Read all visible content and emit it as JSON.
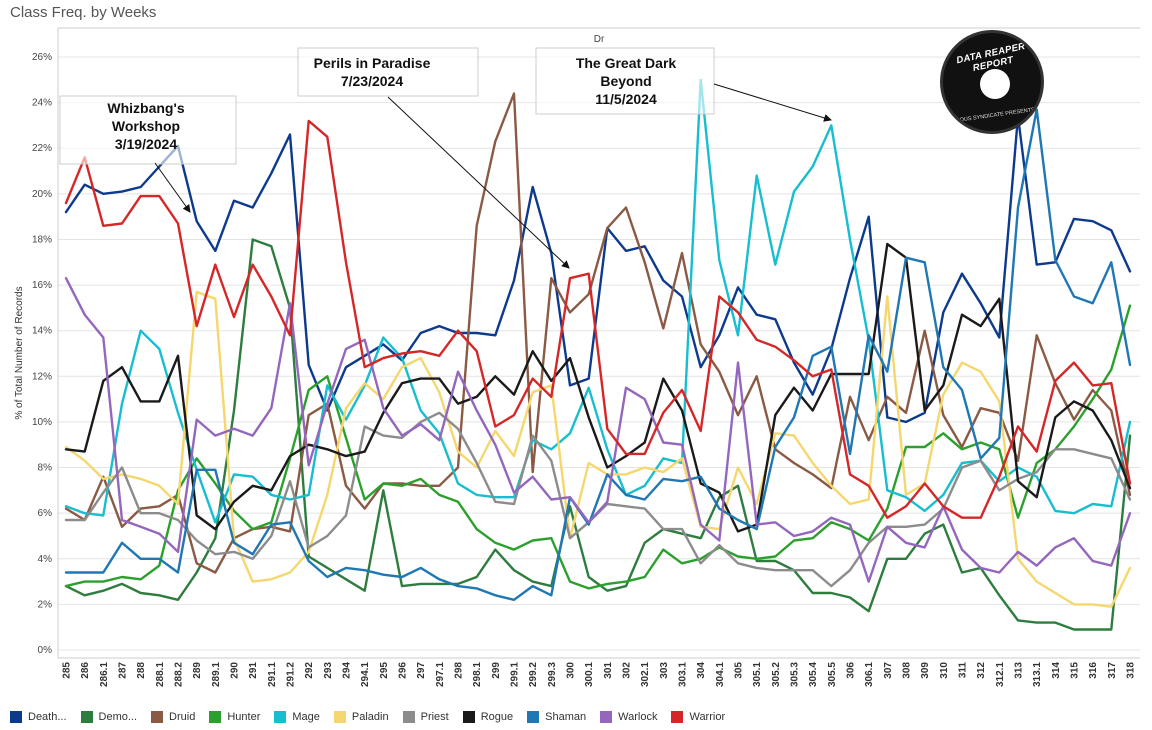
{
  "header": {
    "title": "Class Freq. by Weeks"
  },
  "logo": {
    "top_text": "DATA REAPER REPORT",
    "bottom_text": "VICIOUS SYNDICATE PRESENTS"
  },
  "legend": [
    {
      "label": "Death...",
      "color": "#0d3a8c"
    },
    {
      "label": "Demo...",
      "color": "#2e7d3e"
    },
    {
      "label": "Druid",
      "color": "#8a5a44"
    },
    {
      "label": "Hunter",
      "color": "#2ca02c"
    },
    {
      "label": "Mage",
      "color": "#17becf"
    },
    {
      "label": "Paladin",
      "color": "#f5d76e"
    },
    {
      "label": "Priest",
      "color": "#8c8c8c"
    },
    {
      "label": "Rogue",
      "color": "#1a1a1a"
    },
    {
      "label": "Shaman",
      "color": "#1f77b4"
    },
    {
      "label": "Warlock",
      "color": "#9467bd"
    },
    {
      "label": "Warrior",
      "color": "#d62728"
    }
  ],
  "chart_data": {
    "type": "line",
    "title": "Class Freq. by Weeks",
    "top_axis_label": "Dr",
    "ylabel": "% of Total Number of Records",
    "ylim": [
      0,
      26
    ],
    "yticks": [
      "0%",
      "2%",
      "4%",
      "6%",
      "8%",
      "10%",
      "12%",
      "14%",
      "16%",
      "18%",
      "20%",
      "22%",
      "24%",
      "26%"
    ],
    "grid": "horizontal",
    "legend_position": "bottom",
    "categories": [
      "285",
      "286",
      "286.1",
      "287",
      "288",
      "288.1",
      "288.2",
      "289",
      "289.1",
      "290",
      "291",
      "291.1",
      "291.2",
      "292",
      "293",
      "294",
      "294.1",
      "295",
      "296",
      "297",
      "297.1",
      "298",
      "298.1",
      "299",
      "299.1",
      "299.2",
      "299.3",
      "300",
      "300.1",
      "301",
      "302",
      "302.1",
      "303",
      "303.1",
      "304",
      "304.1",
      "305",
      "305.1",
      "305.2",
      "305.3",
      "305.4",
      "305.5",
      "306",
      "306.1",
      "307",
      "308",
      "309",
      "310",
      "311",
      "312",
      "312.1",
      "313",
      "313.1",
      "314",
      "315",
      "316",
      "317",
      "318"
    ],
    "annotations": [
      {
        "lines": [
          "Whizbang's",
          "Workshop",
          "3/19/2024"
        ]
      },
      {
        "lines": [
          "Perils in Paradise",
          "7/23/2024"
        ]
      },
      {
        "lines": [
          "The Great Dark",
          "Beyond",
          "11/5/2024"
        ]
      }
    ],
    "series": [
      {
        "name": "Death...",
        "values": [
          19.2,
          20.4,
          20.0,
          20.1,
          20.3,
          21.2,
          22.1,
          18.8,
          17.5,
          19.7,
          19.4,
          20.9,
          22.6,
          12.5,
          10.5,
          12.4,
          12.9,
          13.4,
          12.7,
          13.9,
          14.2,
          13.9,
          13.9,
          13.8,
          16.2,
          20.3,
          17.4,
          11.6,
          11.9,
          18.5,
          17.5,
          17.7,
          16.2,
          15.5,
          12.4,
          13.8,
          15.9,
          14.7,
          14.5,
          12.6,
          11.2,
          13.2,
          16.3,
          19.0,
          10.2,
          10.0,
          10.4,
          14.8,
          16.5,
          15.2,
          13.7,
          23.4,
          16.9,
          17.0,
          18.9,
          18.8,
          18.4,
          16.6
        ]
      },
      {
        "name": "Demo...",
        "values": [
          2.8,
          2.4,
          2.6,
          2.9,
          2.5,
          2.4,
          2.2,
          3.4,
          4.9,
          10.5,
          18.0,
          17.7,
          15.0,
          4.1,
          3.6,
          3.1,
          2.6,
          7.0,
          2.8,
          2.9,
          2.9,
          2.9,
          3.2,
          4.4,
          3.5,
          3.0,
          2.8,
          6.3,
          3.2,
          2.6,
          2.8,
          4.7,
          5.3,
          5.1,
          4.9,
          6.7,
          7.2,
          3.9,
          3.9,
          3.5,
          2.5,
          2.5,
          2.3,
          1.7,
          4.0,
          4.0,
          5.1,
          5.5,
          3.4,
          3.6,
          2.4,
          1.3,
          1.2,
          1.2,
          0.9,
          0.9,
          0.9,
          9.4
        ]
      },
      {
        "name": "Druid",
        "values": [
          6.2,
          5.7,
          7.6,
          5.4,
          6.2,
          6.3,
          6.8,
          3.8,
          3.4,
          4.9,
          5.3,
          5.4,
          5.2,
          10.3,
          10.8,
          7.2,
          6.2,
          7.3,
          7.3,
          7.2,
          7.2,
          8.0,
          18.6,
          22.3,
          24.4,
          7.8,
          16.3,
          14.8,
          15.6,
          18.5,
          19.4,
          17.0,
          14.1,
          17.4,
          13.4,
          12.2,
          10.3,
          12.0,
          8.8,
          8.2,
          7.7,
          7.1,
          11.1,
          9.2,
          11.1,
          10.4,
          14.0,
          10.3,
          8.9,
          10.6,
          10.4,
          8.3,
          13.8,
          11.7,
          10.1,
          11.4,
          10.5,
          6.8
        ]
      },
      {
        "name": "Hunter",
        "values": [
          2.8,
          3.0,
          3.0,
          3.2,
          3.1,
          3.7,
          7.0,
          8.4,
          7.3,
          6.1,
          5.3,
          5.6,
          8.4,
          11.4,
          12.0,
          9.3,
          6.6,
          7.3,
          7.2,
          7.5,
          6.8,
          6.5,
          5.3,
          4.7,
          4.4,
          4.8,
          4.9,
          3.0,
          2.7,
          2.9,
          3.0,
          3.2,
          4.4,
          3.8,
          4.0,
          4.5,
          4.1,
          4.0,
          4.1,
          4.8,
          4.9,
          5.6,
          5.3,
          4.8,
          6.2,
          8.9,
          8.9,
          9.5,
          8.8,
          9.1,
          8.8,
          5.8,
          8.2,
          8.8,
          9.8,
          11.0,
          12.3,
          15.1
        ]
      },
      {
        "name": "Mage",
        "values": [
          6.3,
          6.0,
          5.9,
          10.8,
          14.0,
          13.2,
          10.4,
          7.9,
          5.6,
          7.7,
          7.6,
          6.8,
          6.6,
          6.8,
          11.6,
          10.1,
          11.6,
          13.7,
          12.8,
          10.5,
          9.5,
          7.3,
          6.8,
          6.7,
          6.7,
          9.2,
          8.8,
          9.5,
          11.5,
          8.8,
          6.8,
          7.2,
          8.4,
          8.2,
          25.0,
          17.1,
          13.8,
          20.8,
          16.9,
          20.1,
          21.2,
          23.0,
          18.0,
          13.6,
          7.0,
          6.7,
          6.1,
          6.8,
          8.2,
          8.3,
          7.4,
          8.0,
          7.6,
          6.1,
          6.0,
          6.4,
          6.3,
          10.0
        ]
      },
      {
        "name": "Paladin",
        "values": [
          8.9,
          8.3,
          7.5,
          7.7,
          7.5,
          7.2,
          6.4,
          15.7,
          15.4,
          4.9,
          3.0,
          3.1,
          3.4,
          4.3,
          6.8,
          10.6,
          11.7,
          11.0,
          12.4,
          12.8,
          11.3,
          8.7,
          8.0,
          9.6,
          8.5,
          11.3,
          11.6,
          4.9,
          8.2,
          7.7,
          7.7,
          8.0,
          7.8,
          8.4,
          5.4,
          5.3,
          8.0,
          6.4,
          9.5,
          9.4,
          8.2,
          7.2,
          6.4,
          6.6,
          15.5,
          6.8,
          7.3,
          11.2,
          12.6,
          12.2,
          10.9,
          4.0,
          3.0,
          2.5,
          2.0,
          2.0,
          1.9,
          3.6
        ]
      },
      {
        "name": "Priest",
        "values": [
          5.7,
          5.7,
          6.9,
          8.0,
          6.0,
          6.0,
          5.7,
          4.8,
          4.2,
          4.3,
          4.0,
          5.0,
          7.4,
          4.5,
          5.0,
          5.9,
          9.8,
          9.4,
          9.3,
          10.0,
          10.4,
          9.7,
          8.2,
          6.5,
          6.4,
          9.4,
          8.3,
          4.9,
          5.6,
          6.4,
          6.3,
          6.2,
          5.3,
          5.3,
          3.8,
          4.6,
          3.8,
          3.6,
          3.5,
          3.5,
          3.5,
          2.8,
          3.5,
          4.7,
          5.4,
          5.4,
          5.5,
          6.2,
          8.0,
          8.3,
          7.0,
          7.5,
          7.8,
          8.8,
          8.8,
          8.6,
          8.4,
          6.6
        ]
      },
      {
        "name": "Rogue",
        "values": [
          8.8,
          8.7,
          11.8,
          12.4,
          10.9,
          10.9,
          12.9,
          5.9,
          5.3,
          6.5,
          7.2,
          7.0,
          8.5,
          9.0,
          8.8,
          8.5,
          8.7,
          10.4,
          11.7,
          11.9,
          11.9,
          10.8,
          11.1,
          12.0,
          11.2,
          13.1,
          11.8,
          12.8,
          10.2,
          8.0,
          8.5,
          9.1,
          11.9,
          10.5,
          7.3,
          6.9,
          5.2,
          5.5,
          10.3,
          11.5,
          10.5,
          12.1,
          12.1,
          12.1,
          17.8,
          17.2,
          10.5,
          11.6,
          14.7,
          14.2,
          15.4,
          7.4,
          6.7,
          10.2,
          10.9,
          10.5,
          9.2,
          7.1
        ]
      },
      {
        "name": "Shaman",
        "values": [
          3.4,
          3.4,
          3.4,
          4.7,
          4.0,
          4.0,
          3.4,
          7.9,
          7.9,
          4.7,
          4.2,
          5.5,
          5.6,
          3.9,
          3.2,
          3.6,
          3.5,
          3.3,
          3.2,
          3.6,
          3.1,
          2.8,
          2.7,
          2.4,
          2.2,
          2.8,
          2.4,
          6.7,
          5.5,
          7.7,
          6.8,
          6.6,
          7.5,
          7.4,
          7.6,
          6.2,
          5.7,
          5.3,
          8.9,
          10.2,
          12.9,
          13.3,
          8.6,
          13.8,
          12.2,
          17.2,
          17.0,
          12.4,
          11.4,
          8.4,
          9.3,
          19.4,
          23.7,
          17.1,
          15.5,
          15.2,
          17.0,
          12.5
        ]
      },
      {
        "name": "Warlock",
        "values": [
          16.3,
          14.7,
          13.7,
          5.7,
          5.4,
          5.1,
          4.3,
          10.1,
          9.4,
          9.7,
          9.4,
          10.6,
          15.2,
          8.1,
          10.8,
          13.2,
          13.6,
          10.6,
          9.4,
          9.9,
          9.2,
          12.2,
          10.5,
          9.0,
          6.9,
          7.6,
          6.6,
          6.7,
          5.6,
          6.5,
          11.5,
          11.0,
          9.1,
          9.0,
          5.5,
          4.8,
          12.6,
          5.5,
          5.6,
          5.0,
          5.2,
          5.8,
          5.5,
          3.0,
          5.4,
          4.7,
          4.5,
          6.3,
          4.4,
          3.6,
          3.4,
          4.3,
          3.7,
          4.5,
          4.9,
          3.9,
          3.7,
          6.0
        ]
      },
      {
        "name": "Warrior",
        "values": [
          19.6,
          21.6,
          18.6,
          18.7,
          19.9,
          19.9,
          18.7,
          14.2,
          16.9,
          14.6,
          16.9,
          15.5,
          13.8,
          23.2,
          22.5,
          17.0,
          12.4,
          12.8,
          13.0,
          13.1,
          12.9,
          14.0,
          13.1,
          9.8,
          10.3,
          11.9,
          11.1,
          16.3,
          16.5,
          9.7,
          8.6,
          8.6,
          10.4,
          11.4,
          9.6,
          15.5,
          14.8,
          13.6,
          13.3,
          12.7,
          12.0,
          12.3,
          7.7,
          7.2,
          5.8,
          6.3,
          7.3,
          6.3,
          5.8,
          5.8,
          7.6,
          9.8,
          8.7,
          11.8,
          12.6,
          11.6,
          11.7,
          7.3
        ]
      }
    ]
  }
}
